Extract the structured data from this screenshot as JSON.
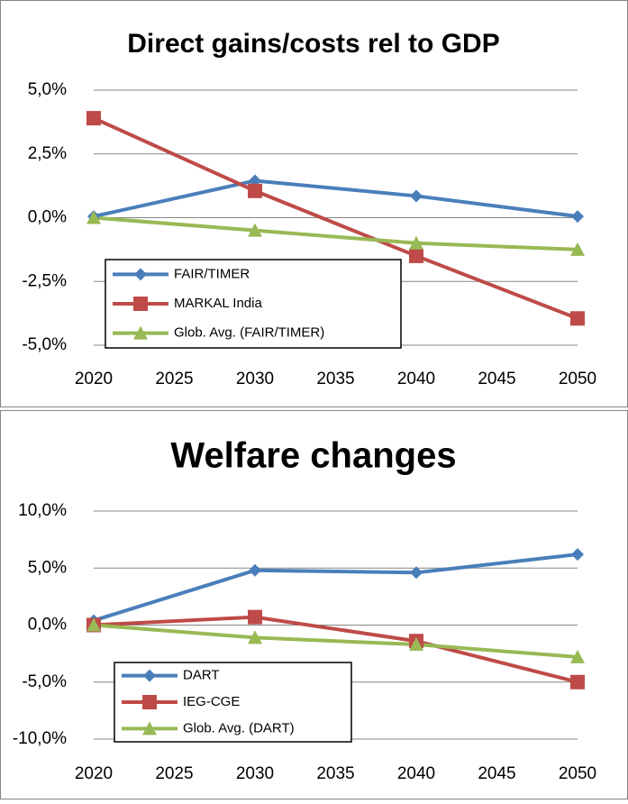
{
  "chart_data": [
    {
      "type": "line",
      "title": "Direct gains/costs rel to GDP",
      "x": [
        2020,
        2030,
        2040,
        2050
      ],
      "xlim": [
        2020,
        2050
      ],
      "xticks": [
        2020,
        2025,
        2030,
        2035,
        2040,
        2045,
        2050
      ],
      "ylim": [
        -5,
        5
      ],
      "yticks": [
        {
          "value": -5,
          "label": "-5,0%"
        },
        {
          "value": -2.5,
          "label": "-2,5%"
        },
        {
          "value": 0,
          "label": "0,0%"
        },
        {
          "value": 2.5,
          "label": "2,5%"
        },
        {
          "value": 5,
          "label": "5,0%"
        }
      ],
      "grid": true,
      "legend": "lower left",
      "series": [
        {
          "name": "FAIR/TIMER",
          "color": "#4a7ebb",
          "marker": "diamond",
          "values": [
            0.05,
            1.45,
            0.85,
            0.05
          ]
        },
        {
          "name": "MARKAL India",
          "color": "#be4b48",
          "marker": "square",
          "values": [
            3.9,
            1.05,
            -1.5,
            -3.95
          ]
        },
        {
          "name": "Glob. Avg. (FAIR/TIMER)",
          "color": "#98b954",
          "marker": "triangle",
          "values": [
            0,
            -0.5,
            -1.0,
            -1.25
          ]
        }
      ]
    },
    {
      "type": "line",
      "title": "Welfare changes",
      "x": [
        2020,
        2030,
        2040,
        2050
      ],
      "xlim": [
        2020,
        2050
      ],
      "xticks": [
        2020,
        2025,
        2030,
        2035,
        2040,
        2045,
        2050
      ],
      "ylim": [
        -10,
        10
      ],
      "yticks": [
        {
          "value": -10,
          "label": "-10,0%"
        },
        {
          "value": -5,
          "label": "-5,0%"
        },
        {
          "value": 0,
          "label": "0,0%"
        },
        {
          "value": 5,
          "label": "5,0%"
        },
        {
          "value": 10,
          "label": "10,0%"
        }
      ],
      "grid": true,
      "legend": "lower left",
      "series": [
        {
          "name": "DART",
          "color": "#4a7ebb",
          "marker": "diamond",
          "values": [
            0.4,
            4.8,
            4.6,
            6.2
          ]
        },
        {
          "name": "IEG-CGE",
          "color": "#be4b48",
          "marker": "square",
          "values": [
            0,
            0.7,
            -1.4,
            -5.0
          ]
        },
        {
          "name": "Glob. Avg. (DART)",
          "color": "#98b954",
          "marker": "triangle",
          "values": [
            0,
            -1.1,
            -1.7,
            -2.8
          ]
        }
      ]
    }
  ]
}
